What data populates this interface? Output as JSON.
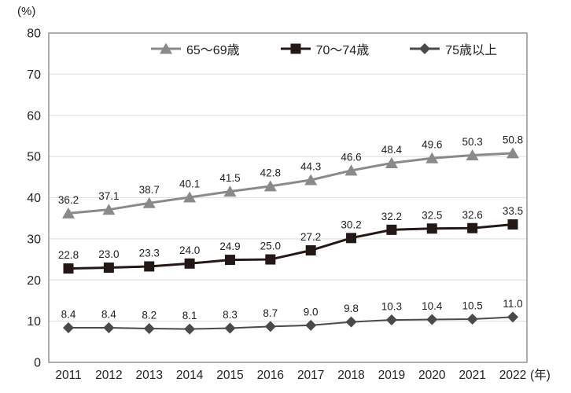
{
  "chart_data": {
    "type": "line",
    "title": "",
    "ylabel": "(%)",
    "x_unit": "(年)",
    "ylim": [
      0,
      80
    ],
    "ytick_step": 10,
    "grid": true,
    "legend_position": "top-inside",
    "categories": [
      "2011",
      "2012",
      "2013",
      "2014",
      "2015",
      "2016",
      "2017",
      "2018",
      "2019",
      "2020",
      "2021",
      "2022"
    ],
    "series": [
      {
        "name": "65〜69歳",
        "marker": "triangle",
        "color": "#8a8a8a",
        "line_width": 3,
        "values": [
          36.2,
          37.1,
          38.7,
          40.1,
          41.5,
          42.8,
          44.3,
          46.6,
          48.4,
          49.6,
          50.3,
          50.8
        ]
      },
      {
        "name": "70〜74歳",
        "marker": "square",
        "color": "#231815",
        "line_width": 3,
        "values": [
          22.8,
          23.0,
          23.3,
          24.0,
          24.9,
          25.0,
          27.2,
          30.2,
          32.2,
          32.5,
          32.6,
          33.5
        ]
      },
      {
        "name": "75歳以上",
        "marker": "diamond",
        "color": "#4a4a4a",
        "line_width": 2,
        "values": [
          8.4,
          8.4,
          8.2,
          8.1,
          8.3,
          8.7,
          9.0,
          9.8,
          10.3,
          10.4,
          10.5,
          11.0
        ]
      }
    ],
    "colors": {
      "grid": "#e2e2e2",
      "axis_border": "#9a9a9a",
      "text": "#222222"
    }
  }
}
